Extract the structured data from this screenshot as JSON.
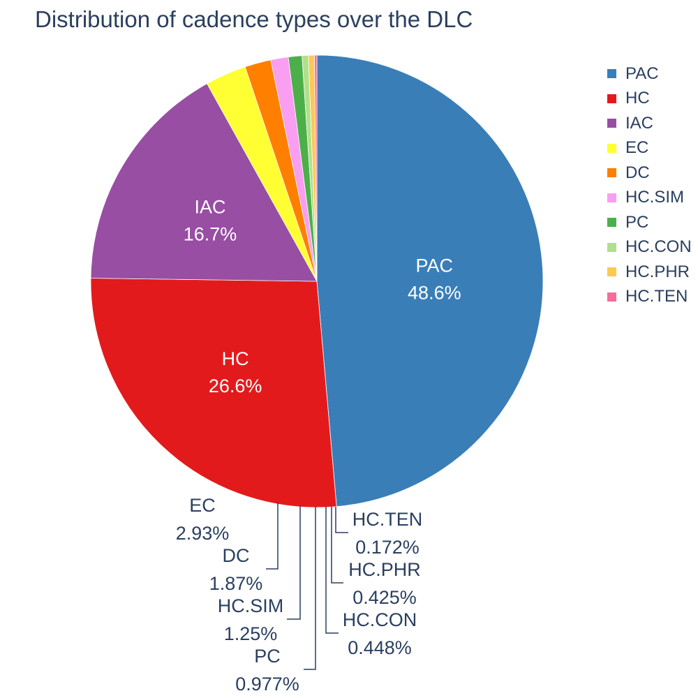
{
  "chart_data": {
    "type": "pie",
    "title": "Distribution of cadence types over the DLC",
    "slices": [
      {
        "label": "PAC",
        "value": 48.6,
        "value_text": "48.6%",
        "color": "#3a7eb8"
      },
      {
        "label": "HC",
        "value": 26.6,
        "value_text": "26.6%",
        "color": "#e31a1c"
      },
      {
        "label": "IAC",
        "value": 16.7,
        "value_text": "16.7%",
        "color": "#984ea3"
      },
      {
        "label": "EC",
        "value": 2.93,
        "value_text": "2.93%",
        "color": "#ffff33"
      },
      {
        "label": "DC",
        "value": 1.87,
        "value_text": "1.87%",
        "color": "#ff7f00"
      },
      {
        "label": "HC.SIM",
        "value": 1.25,
        "value_text": "1.25%",
        "color": "#f99ef0"
      },
      {
        "label": "PC",
        "value": 0.977,
        "value_text": "0.977%",
        "color": "#4daf4a"
      },
      {
        "label": "HC.CON",
        "value": 0.448,
        "value_text": "0.448%",
        "color": "#b2df8a"
      },
      {
        "label": "HC.PHR",
        "value": 0.425,
        "value_text": "0.425%",
        "color": "#fdc857"
      },
      {
        "label": "HC.TEN",
        "value": 0.172,
        "value_text": "0.172%",
        "color": "#f76c9a"
      }
    ],
    "direction": "clockwise",
    "legend_position": "right"
  }
}
